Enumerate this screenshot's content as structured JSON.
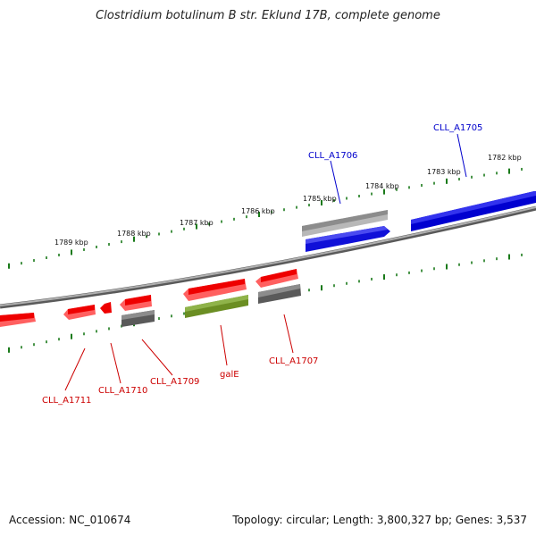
{
  "title": "Clostridium botulinum B str. Eklund 17B, complete genome",
  "footer": {
    "accession": "Accession: NC_010674",
    "summary": "Topology: circular; Length: 3,800,327 bp; Genes: 3,537"
  },
  "kbp_labels": [
    "1789 kbp",
    "1788 kbp",
    "1787 kbp",
    "1786 kbp",
    "1785 kbp",
    "1784 kbp",
    "1783 kbp",
    "1782 kbp"
  ],
  "gene_labels": {
    "cll_a1706": "CLL_A1706",
    "cll_a1705": "CLL_A1705",
    "cll_a1711": "CLL_A1711",
    "cll_a1710": "CLL_A1710",
    "cll_a1709": "CLL_A1709",
    "gale": "galE",
    "cll_a1707": "CLL_A1707"
  },
  "colors": {
    "forward_gene": "#0000ee",
    "reverse_gene": "#ee0000",
    "pseudo_gene": "#8a8a8a",
    "rna_gene": "#6b8e23",
    "backbone": "#808080",
    "tick": "#1a7a1a",
    "forward_label": "#0000cc",
    "reverse_label": "#cc0000"
  }
}
